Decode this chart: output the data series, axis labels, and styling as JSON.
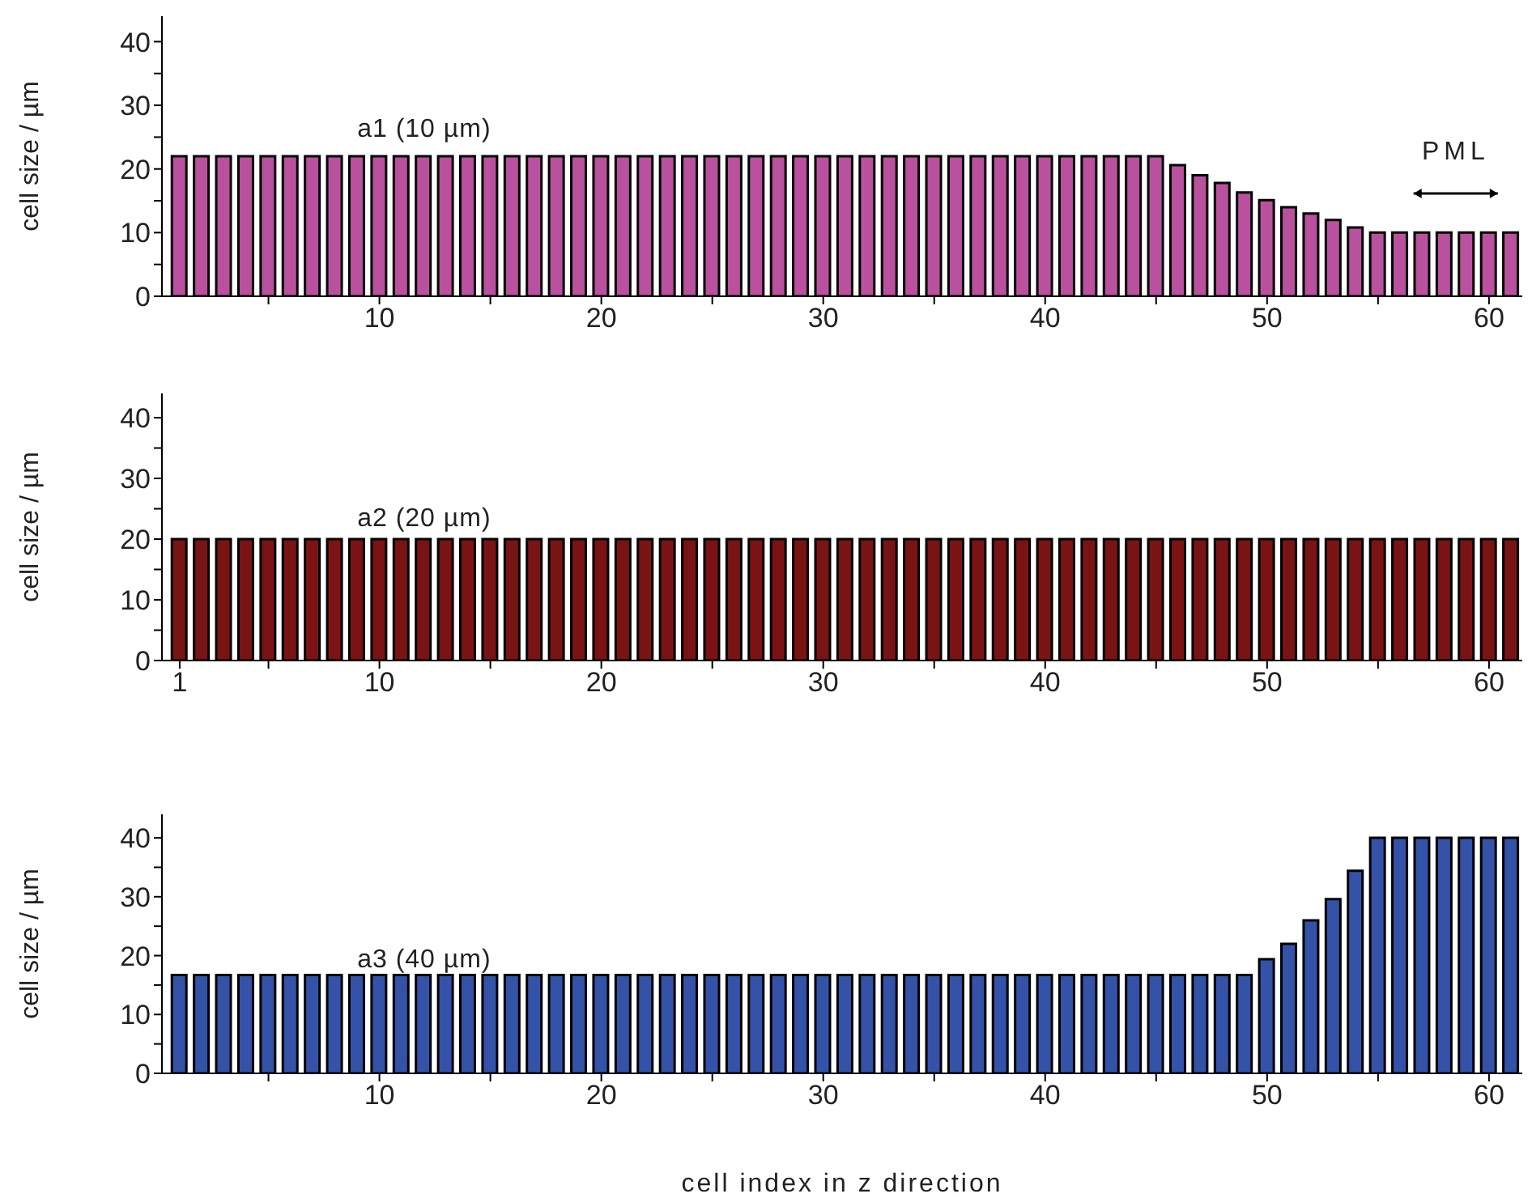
{
  "chart_data": [
    {
      "type": "bar",
      "x": [
        1,
        2,
        3,
        4,
        5,
        6,
        7,
        8,
        9,
        10,
        11,
        12,
        13,
        14,
        15,
        16,
        17,
        18,
        19,
        20,
        21,
        22,
        23,
        24,
        25,
        26,
        27,
        28,
        29,
        30,
        31,
        32,
        33,
        34,
        35,
        36,
        37,
        38,
        39,
        40,
        41,
        42,
        43,
        44,
        45,
        46,
        47,
        48,
        49,
        50,
        51,
        52,
        53,
        54,
        55,
        56,
        57,
        58,
        59,
        60,
        61
      ],
      "values": [
        22,
        22,
        22,
        22,
        22,
        22,
        22,
        22,
        22,
        22,
        22,
        22,
        22,
        22,
        22,
        22,
        22,
        22,
        22,
        22,
        22,
        22,
        22,
        22,
        22,
        22,
        22,
        22,
        22,
        22,
        22,
        22,
        22,
        22,
        22,
        22,
        22,
        22,
        22,
        22,
        22,
        22,
        22,
        22,
        22,
        20.6,
        19,
        17.8,
        16.3,
        15.1,
        14,
        13,
        12,
        10.8,
        10,
        10,
        10,
        10,
        10,
        10,
        10
      ],
      "color": "#b9519e",
      "ylabel": "cell size / µm",
      "xlim": [
        0.2,
        61.5
      ],
      "ylim": [
        0,
        44
      ],
      "xticks": [
        {
          "value": 5,
          "label": null
        },
        10,
        {
          "value": 15,
          "label": null
        },
        20,
        {
          "value": 25,
          "label": null
        },
        30,
        {
          "value": 35,
          "label": null
        },
        40,
        {
          "value": 45,
          "label": null
        },
        50,
        {
          "value": 55,
          "label": null
        },
        60
      ],
      "yticks": [
        0,
        {
          "value": 5,
          "label": null
        },
        10,
        {
          "value": 15,
          "label": null
        },
        20,
        {
          "value": 25,
          "label": null
        },
        30,
        {
          "value": 35,
          "label": null
        },
        40
      ],
      "annotations": [
        "a1 (10 µm)",
        "PML"
      ],
      "legend": false,
      "grid": false
    },
    {
      "type": "bar",
      "x": [
        1,
        2,
        3,
        4,
        5,
        6,
        7,
        8,
        9,
        10,
        11,
        12,
        13,
        14,
        15,
        16,
        17,
        18,
        19,
        20,
        21,
        22,
        23,
        24,
        25,
        26,
        27,
        28,
        29,
        30,
        31,
        32,
        33,
        34,
        35,
        36,
        37,
        38,
        39,
        40,
        41,
        42,
        43,
        44,
        45,
        46,
        47,
        48,
        49,
        50,
        51,
        52,
        53,
        54,
        55,
        56,
        57,
        58,
        59,
        60,
        61
      ],
      "values": [
        20,
        20,
        20,
        20,
        20,
        20,
        20,
        20,
        20,
        20,
        20,
        20,
        20,
        20,
        20,
        20,
        20,
        20,
        20,
        20,
        20,
        20,
        20,
        20,
        20,
        20,
        20,
        20,
        20,
        20,
        20,
        20,
        20,
        20,
        20,
        20,
        20,
        20,
        20,
        20,
        20,
        20,
        20,
        20,
        20,
        20,
        20,
        20,
        20,
        20,
        20,
        20,
        20,
        20,
        20,
        20,
        20,
        20,
        20,
        20,
        20
      ],
      "color": "#7a1414",
      "ylabel": "cell size / µm",
      "xlim": [
        0.2,
        61.5
      ],
      "ylim": [
        0,
        44
      ],
      "xticks": [
        1,
        {
          "value": 5,
          "label": null
        },
        10,
        {
          "value": 15,
          "label": null
        },
        20,
        {
          "value": 25,
          "label": null
        },
        30,
        {
          "value": 35,
          "label": null
        },
        40,
        {
          "value": 45,
          "label": null
        },
        50,
        {
          "value": 55,
          "label": null
        },
        60
      ],
      "yticks": [
        0,
        {
          "value": 5,
          "label": null
        },
        10,
        {
          "value": 15,
          "label": null
        },
        20,
        {
          "value": 25,
          "label": null
        },
        30,
        {
          "value": 35,
          "label": null
        },
        40
      ],
      "annotations": [
        "a2 (20 µm)"
      ],
      "legend": false,
      "grid": false
    },
    {
      "type": "bar",
      "x": [
        1,
        2,
        3,
        4,
        5,
        6,
        7,
        8,
        9,
        10,
        11,
        12,
        13,
        14,
        15,
        16,
        17,
        18,
        19,
        20,
        21,
        22,
        23,
        24,
        25,
        26,
        27,
        28,
        29,
        30,
        31,
        32,
        33,
        34,
        35,
        36,
        37,
        38,
        39,
        40,
        41,
        42,
        43,
        44,
        45,
        46,
        47,
        48,
        49,
        50,
        51,
        52,
        53,
        54,
        55,
        56,
        57,
        58,
        59,
        60,
        61
      ],
      "values": [
        16.7,
        16.7,
        16.7,
        16.7,
        16.7,
        16.7,
        16.7,
        16.7,
        16.7,
        16.7,
        16.7,
        16.7,
        16.7,
        16.7,
        16.7,
        16.7,
        16.7,
        16.7,
        16.7,
        16.7,
        16.7,
        16.7,
        16.7,
        16.7,
        16.7,
        16.7,
        16.7,
        16.7,
        16.7,
        16.7,
        16.7,
        16.7,
        16.7,
        16.7,
        16.7,
        16.7,
        16.7,
        16.7,
        16.7,
        16.7,
        16.7,
        16.7,
        16.7,
        16.7,
        16.7,
        16.7,
        16.7,
        16.7,
        16.7,
        19.4,
        22,
        26,
        29.6,
        34.4,
        40,
        40,
        40,
        40,
        40,
        40,
        40
      ],
      "color": "#3452a8",
      "ylabel": "cell size / µm",
      "xlabel": "cell index in z direction",
      "xlim": [
        0.2,
        61.5
      ],
      "ylim": [
        0,
        44
      ],
      "xticks": [
        {
          "value": 5,
          "label": null
        },
        10,
        {
          "value": 15,
          "label": null
        },
        20,
        {
          "value": 25,
          "label": null
        },
        30,
        {
          "value": 35,
          "label": null
        },
        40,
        {
          "value": 45,
          "label": null
        },
        50,
        {
          "value": 55,
          "label": null
        },
        60
      ],
      "yticks": [
        0,
        {
          "value": 5,
          "label": null
        },
        10,
        {
          "value": 15,
          "label": null
        },
        20,
        {
          "value": 25,
          "label": null
        },
        30,
        {
          "value": 35,
          "label": null
        },
        40
      ],
      "annotations": [
        "a3 (40 µm)"
      ],
      "legend": false,
      "grid": false
    }
  ]
}
